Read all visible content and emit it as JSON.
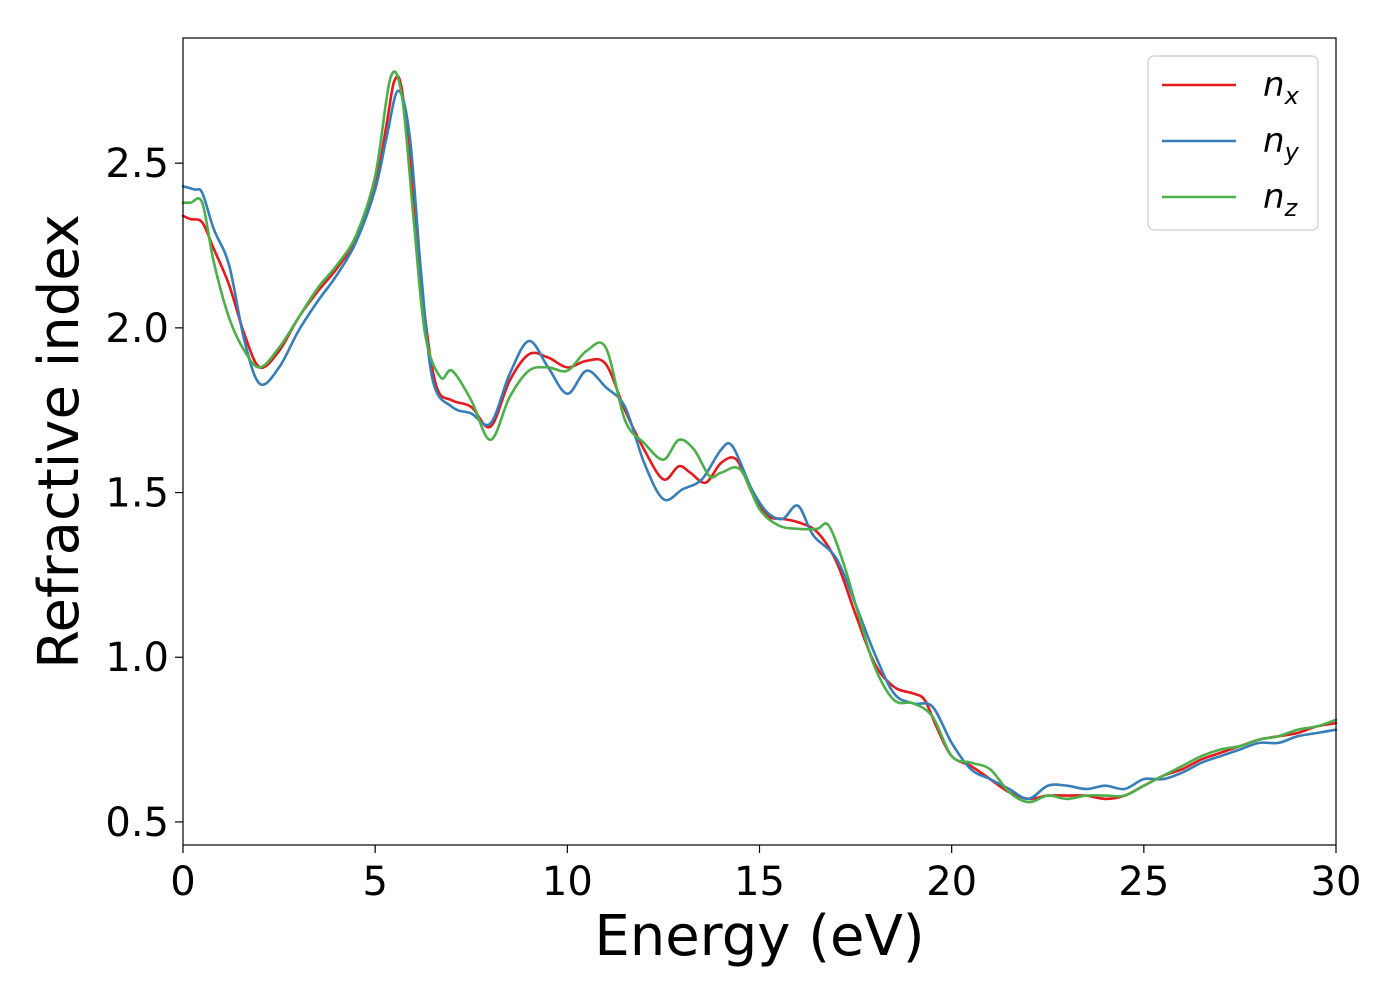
{
  "chart_data": {
    "type": "line",
    "xlabel": "Energy (eV)",
    "ylabel": "Refractive index",
    "xlim": [
      0,
      30
    ],
    "ylim": [
      0.43,
      2.88
    ],
    "xticks": [
      0,
      5,
      10,
      15,
      20,
      25,
      30
    ],
    "xtick_labels": [
      "0",
      "5",
      "10",
      "15",
      "20",
      "25",
      "30"
    ],
    "yticks": [
      0.5,
      1.0,
      1.5,
      2.0,
      2.5
    ],
    "ytick_labels": [
      "0.5",
      "1.0",
      "1.5",
      "2.0",
      "2.5"
    ],
    "grid": false,
    "legend_position": "top-right",
    "series": [
      {
        "name": "n_x",
        "legend_base": "n",
        "legend_sub": "x",
        "color": "#e41a1c",
        "points": [
          [
            0,
            2.34
          ],
          [
            0.2,
            2.33
          ],
          [
            0.5,
            2.32
          ],
          [
            0.8,
            2.24
          ],
          [
            1.2,
            2.13
          ],
          [
            1.6,
            1.98
          ],
          [
            2.0,
            1.88
          ],
          [
            2.5,
            1.93
          ],
          [
            3.0,
            2.03
          ],
          [
            3.5,
            2.11
          ],
          [
            4.0,
            2.18
          ],
          [
            4.5,
            2.27
          ],
          [
            5.0,
            2.43
          ],
          [
            5.3,
            2.62
          ],
          [
            5.5,
            2.75
          ],
          [
            5.7,
            2.72
          ],
          [
            6.0,
            2.39
          ],
          [
            6.3,
            2.03
          ],
          [
            6.6,
            1.82
          ],
          [
            7.0,
            1.78
          ],
          [
            7.5,
            1.76
          ],
          [
            8.0,
            1.7
          ],
          [
            8.5,
            1.84
          ],
          [
            9.0,
            1.92
          ],
          [
            9.5,
            1.91
          ],
          [
            10.0,
            1.88
          ],
          [
            10.5,
            1.9
          ],
          [
            11.0,
            1.89
          ],
          [
            11.5,
            1.75
          ],
          [
            12.0,
            1.63
          ],
          [
            12.5,
            1.54
          ],
          [
            12.9,
            1.58
          ],
          [
            13.2,
            1.56
          ],
          [
            13.6,
            1.53
          ],
          [
            14.0,
            1.59
          ],
          [
            14.4,
            1.6
          ],
          [
            14.8,
            1.5
          ],
          [
            15.2,
            1.43
          ],
          [
            15.6,
            1.42
          ],
          [
            16.0,
            1.41
          ],
          [
            16.5,
            1.38
          ],
          [
            17.0,
            1.29
          ],
          [
            17.5,
            1.13
          ],
          [
            18.0,
            0.98
          ],
          [
            18.5,
            0.91
          ],
          [
            19.0,
            0.89
          ],
          [
            19.3,
            0.87
          ],
          [
            19.6,
            0.79
          ],
          [
            20.0,
            0.7
          ],
          [
            20.5,
            0.67
          ],
          [
            21.0,
            0.63
          ],
          [
            21.5,
            0.59
          ],
          [
            22.0,
            0.57
          ],
          [
            22.5,
            0.58
          ],
          [
            23.0,
            0.58
          ],
          [
            23.5,
            0.58
          ],
          [
            24.0,
            0.57
          ],
          [
            24.5,
            0.58
          ],
          [
            25.0,
            0.61
          ],
          [
            25.5,
            0.64
          ],
          [
            26.0,
            0.66
          ],
          [
            26.5,
            0.69
          ],
          [
            27.0,
            0.71
          ],
          [
            27.5,
            0.73
          ],
          [
            28.0,
            0.75
          ],
          [
            28.5,
            0.76
          ],
          [
            29.0,
            0.77
          ],
          [
            29.5,
            0.79
          ],
          [
            30.0,
            0.8
          ]
        ]
      },
      {
        "name": "n_y",
        "legend_base": "n",
        "legend_sub": "y",
        "color": "#377eb8",
        "points": [
          [
            0,
            2.43
          ],
          [
            0.3,
            2.42
          ],
          [
            0.5,
            2.41
          ],
          [
            0.8,
            2.3
          ],
          [
            1.2,
            2.19
          ],
          [
            1.6,
            1.96
          ],
          [
            2.0,
            1.83
          ],
          [
            2.5,
            1.88
          ],
          [
            3.0,
            1.99
          ],
          [
            3.5,
            2.08
          ],
          [
            4.0,
            2.16
          ],
          [
            4.5,
            2.26
          ],
          [
            5.0,
            2.42
          ],
          [
            5.3,
            2.58
          ],
          [
            5.6,
            2.72
          ],
          [
            5.9,
            2.58
          ],
          [
            6.2,
            2.16
          ],
          [
            6.5,
            1.84
          ],
          [
            7.0,
            1.76
          ],
          [
            7.5,
            1.74
          ],
          [
            8.0,
            1.71
          ],
          [
            8.5,
            1.86
          ],
          [
            9.0,
            1.96
          ],
          [
            9.5,
            1.88
          ],
          [
            10.0,
            1.8
          ],
          [
            10.5,
            1.87
          ],
          [
            11.0,
            1.82
          ],
          [
            11.5,
            1.76
          ],
          [
            12.0,
            1.59
          ],
          [
            12.5,
            1.48
          ],
          [
            13.0,
            1.51
          ],
          [
            13.5,
            1.54
          ],
          [
            14.0,
            1.63
          ],
          [
            14.3,
            1.64
          ],
          [
            14.8,
            1.51
          ],
          [
            15.2,
            1.44
          ],
          [
            15.6,
            1.42
          ],
          [
            16.0,
            1.46
          ],
          [
            16.4,
            1.37
          ],
          [
            17.0,
            1.3
          ],
          [
            17.5,
            1.16
          ],
          [
            18.0,
            1.01
          ],
          [
            18.5,
            0.89
          ],
          [
            19.0,
            0.86
          ],
          [
            19.5,
            0.85
          ],
          [
            20.0,
            0.74
          ],
          [
            20.5,
            0.66
          ],
          [
            21.0,
            0.63
          ],
          [
            21.5,
            0.6
          ],
          [
            22.0,
            0.57
          ],
          [
            22.5,
            0.61
          ],
          [
            23.0,
            0.61
          ],
          [
            23.5,
            0.6
          ],
          [
            24.0,
            0.61
          ],
          [
            24.5,
            0.6
          ],
          [
            25.0,
            0.63
          ],
          [
            25.5,
            0.63
          ],
          [
            26.0,
            0.65
          ],
          [
            26.5,
            0.68
          ],
          [
            27.0,
            0.7
          ],
          [
            27.5,
            0.72
          ],
          [
            28.0,
            0.74
          ],
          [
            28.5,
            0.74
          ],
          [
            29.0,
            0.76
          ],
          [
            29.5,
            0.77
          ],
          [
            30.0,
            0.78
          ]
        ]
      },
      {
        "name": "n_z",
        "legend_base": "n",
        "legend_sub": "z",
        "color": "#4daf4a",
        "points": [
          [
            0,
            2.38
          ],
          [
            0.2,
            2.38
          ],
          [
            0.5,
            2.38
          ],
          [
            0.8,
            2.2
          ],
          [
            1.2,
            2.03
          ],
          [
            1.6,
            1.93
          ],
          [
            2.0,
            1.88
          ],
          [
            2.5,
            1.94
          ],
          [
            3.0,
            2.03
          ],
          [
            3.5,
            2.12
          ],
          [
            4.0,
            2.19
          ],
          [
            4.5,
            2.28
          ],
          [
            5.0,
            2.46
          ],
          [
            5.4,
            2.76
          ],
          [
            5.7,
            2.7
          ],
          [
            6.0,
            2.33
          ],
          [
            6.3,
            1.98
          ],
          [
            6.7,
            1.85
          ],
          [
            7.0,
            1.87
          ],
          [
            7.5,
            1.78
          ],
          [
            8.0,
            1.66
          ],
          [
            8.5,
            1.79
          ],
          [
            9.0,
            1.87
          ],
          [
            9.5,
            1.88
          ],
          [
            10.0,
            1.87
          ],
          [
            10.5,
            1.93
          ],
          [
            11.0,
            1.94
          ],
          [
            11.5,
            1.72
          ],
          [
            12.0,
            1.65
          ],
          [
            12.5,
            1.6
          ],
          [
            12.9,
            1.66
          ],
          [
            13.3,
            1.63
          ],
          [
            13.7,
            1.55
          ],
          [
            14.0,
            1.56
          ],
          [
            14.5,
            1.57
          ],
          [
            15.0,
            1.45
          ],
          [
            15.5,
            1.4
          ],
          [
            16.0,
            1.39
          ],
          [
            16.5,
            1.39
          ],
          [
            16.8,
            1.4
          ],
          [
            17.2,
            1.28
          ],
          [
            17.6,
            1.12
          ],
          [
            18.0,
            0.97
          ],
          [
            18.5,
            0.87
          ],
          [
            19.0,
            0.86
          ],
          [
            19.5,
            0.82
          ],
          [
            20.0,
            0.7
          ],
          [
            20.5,
            0.68
          ],
          [
            21.0,
            0.66
          ],
          [
            21.5,
            0.59
          ],
          [
            22.0,
            0.56
          ],
          [
            22.5,
            0.58
          ],
          [
            23.0,
            0.57
          ],
          [
            23.5,
            0.58
          ],
          [
            24.0,
            0.58
          ],
          [
            24.5,
            0.58
          ],
          [
            25.0,
            0.61
          ],
          [
            25.5,
            0.64
          ],
          [
            26.0,
            0.67
          ],
          [
            26.5,
            0.7
          ],
          [
            27.0,
            0.72
          ],
          [
            27.5,
            0.73
          ],
          [
            28.0,
            0.75
          ],
          [
            28.5,
            0.76
          ],
          [
            29.0,
            0.78
          ],
          [
            29.5,
            0.79
          ],
          [
            30.0,
            0.81
          ]
        ]
      }
    ]
  }
}
